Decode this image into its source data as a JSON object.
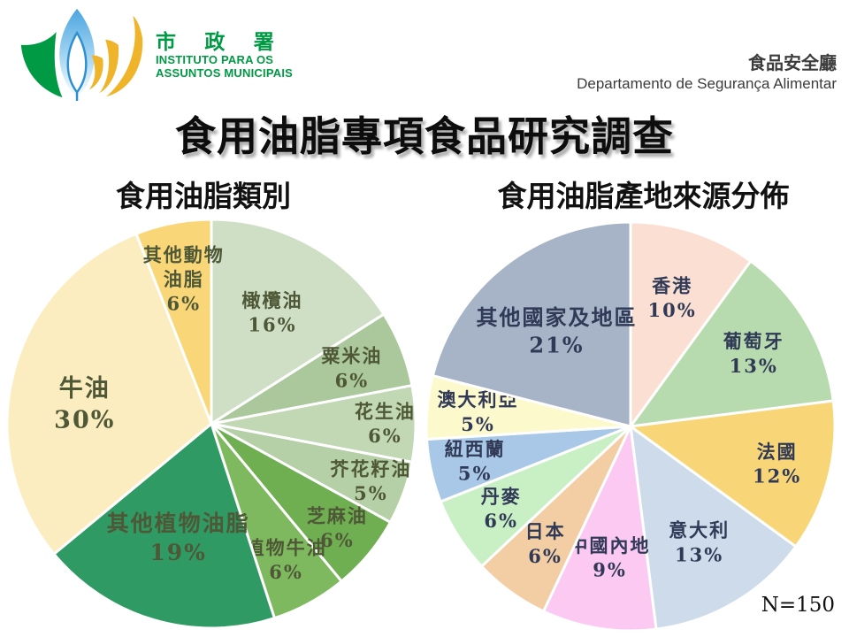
{
  "header": {
    "logo": {
      "cn": "市 政 署",
      "pt_line1": "INSTITUTO PARA OS",
      "pt_line2": "ASSUNTOS MUNICIPAIS"
    },
    "department": {
      "cn": "食品安全廳",
      "pt": "Departamento de Segurança Alimentar"
    }
  },
  "title": "食用油脂專項食品研究調查",
  "footnote": "N=150",
  "colors": {
    "logo_green": "#009a44",
    "logo_blue": "#4fa8dd",
    "logo_gold": "#f0b42b",
    "department_text": "#3c3c3c",
    "title_text": "#0d0d0d",
    "left_pie_label": "#4e5837",
    "right_pie_label": "#303a56"
  },
  "chart_data": [
    {
      "type": "pie",
      "title": "食用油脂類別",
      "unit": "percent",
      "start_angle_deg": 0,
      "direction": "clockwise",
      "legend": "none",
      "label_color": "#4e5837",
      "slices": [
        {
          "name": "橄欖油",
          "value": 16,
          "color": "#cfdfc5",
          "label_lines": [
            "橄欖油",
            "16%"
          ],
          "label_r": 0.62
        },
        {
          "name": "粟米油",
          "value": 6,
          "color": "#abc89c",
          "label_lines": [
            "粟米油",
            "6%"
          ],
          "label_r": 0.74
        },
        {
          "name": "花生油",
          "value": 6,
          "color": "#c2d7b4",
          "label_lines": [
            "花生油",
            "6%"
          ],
          "label_r": 0.85
        },
        {
          "name": "芥花籽油",
          "value": 5,
          "color": "#b5cfa6",
          "label_lines": [
            "芥花籽油",
            "5%"
          ],
          "label_r": 0.83
        },
        {
          "name": "芝麻油",
          "value": 6,
          "color": "#6fae51",
          "label_lines": [
            "芝麻油",
            "6%"
          ],
          "label_r": 0.8
        },
        {
          "name": "植物牛油",
          "value": 6,
          "color": "#7fb95f",
          "label_lines": [
            "植物牛油",
            "6%"
          ],
          "label_r": 0.76
        },
        {
          "name": "其他植物油脂",
          "value": 19,
          "color": "#2f9a63",
          "label_lines": [
            "其他植物油脂",
            "19%"
          ],
          "label_r": 0.58,
          "font_size": 25
        },
        {
          "name": "牛油",
          "value": 30,
          "color": "#fcedc0",
          "label_lines": [
            "牛油",
            "30%"
          ],
          "label_r": 0.64,
          "font_size": 27,
          "label_dy": 14
        },
        {
          "name": "其他動物油脂",
          "value": 6,
          "color": "#f9d678",
          "label_lines": [
            "其他動物",
            "油脂",
            "6%"
          ],
          "label_r": 0.72
        }
      ]
    },
    {
      "type": "pie",
      "title": "食用油脂產地來源分佈",
      "unit": "percent",
      "start_angle_deg": 0,
      "direction": "clockwise",
      "legend": "none",
      "label_color": "#303a56",
      "slices": [
        {
          "name": "香港",
          "value": 10,
          "color": "#fadfd2",
          "label_lines": [
            "香港",
            "10%"
          ],
          "label_r": 0.66
        },
        {
          "name": "葡萄牙",
          "value": 13,
          "color": "#b7dbae",
          "label_lines": [
            "葡萄牙",
            "13%"
          ],
          "label_r": 0.7
        },
        {
          "name": "法國",
          "value": 12,
          "color": "#f8d678",
          "label_lines": [
            "法國",
            "12%"
          ],
          "label_r": 0.74
        },
        {
          "name": "意大利",
          "value": 13,
          "color": "#cedbeb",
          "label_lines": [
            "意大利",
            "13%"
          ],
          "label_r": 0.66
        },
        {
          "name": "中國內地",
          "value": 9,
          "color": "#fbc9f1",
          "label_lines": [
            "中國內地",
            "9%"
          ],
          "label_r": 0.65
        },
        {
          "name": "日本",
          "value": 6,
          "color": "#f3cda3",
          "label_lines": [
            "日本",
            "6%"
          ],
          "label_r": 0.71
        },
        {
          "name": "丹麥",
          "value": 6,
          "color": "#c9f0c4",
          "label_lines": [
            "丹麥",
            "6%"
          ],
          "label_r": 0.75
        },
        {
          "name": "紐西蘭",
          "value": 5,
          "color": "#a9c8e8",
          "label_lines": [
            "紐西蘭",
            "5%"
          ],
          "label_r": 0.78
        },
        {
          "name": "澳大利亞",
          "value": 5,
          "color": "#fcf9cd",
          "label_lines": [
            "澳大利亞",
            "5%"
          ],
          "label_r": 0.75
        },
        {
          "name": "其他國家及地區",
          "value": 21,
          "color": "#a7b3c6",
          "label_lines": [
            "其他國家及地區",
            "21%"
          ],
          "label_r": 0.59,
          "font_size": 24
        }
      ]
    }
  ]
}
